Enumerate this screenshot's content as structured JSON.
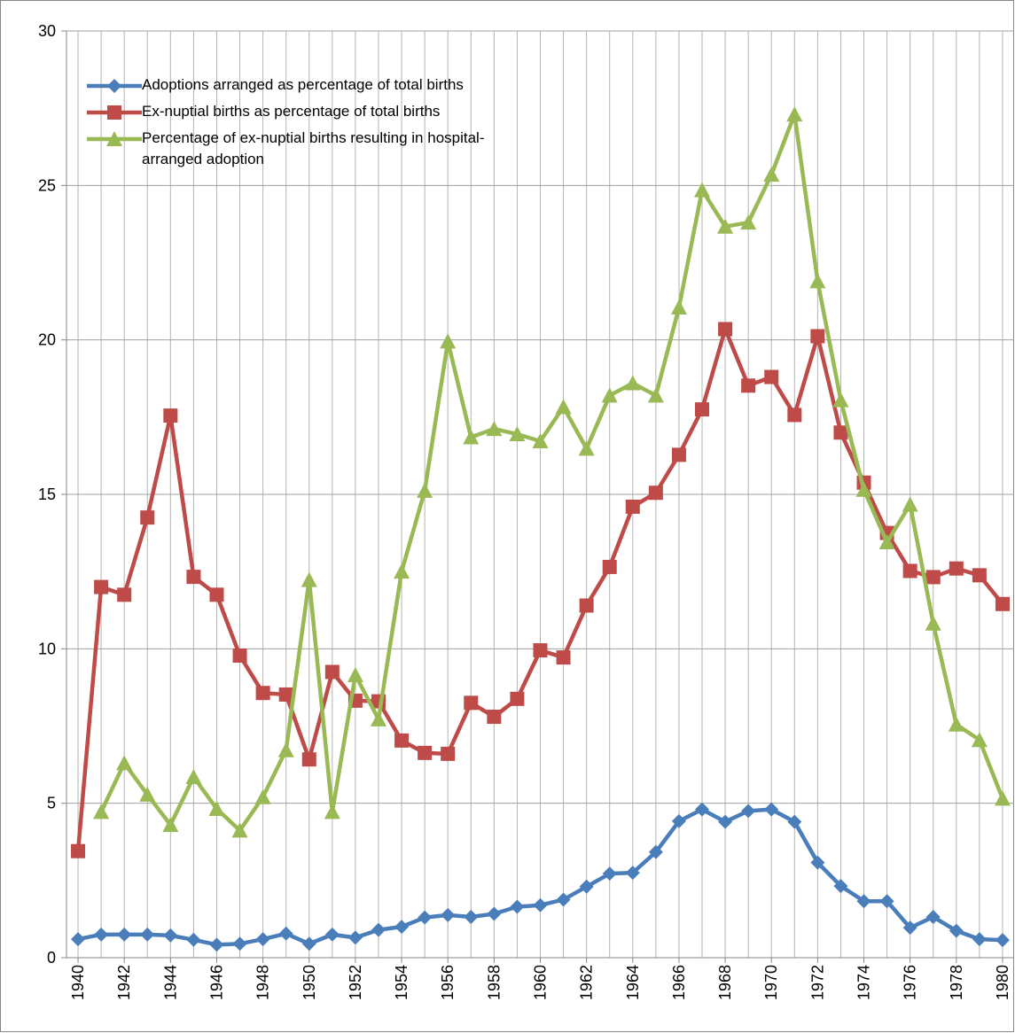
{
  "chart_data": {
    "type": "line",
    "x": [
      1940,
      1941,
      1942,
      1943,
      1944,
      1945,
      1946,
      1947,
      1948,
      1949,
      1950,
      1951,
      1952,
      1953,
      1954,
      1955,
      1956,
      1957,
      1958,
      1959,
      1960,
      1961,
      1962,
      1963,
      1964,
      1965,
      1966,
      1967,
      1968,
      1969,
      1970,
      1971,
      1972,
      1973,
      1974,
      1975,
      1976,
      1977,
      1978,
      1979,
      1980
    ],
    "xlim": [
      1939.5,
      1980.5
    ],
    "xticks": [
      1940,
      1942,
      1944,
      1946,
      1948,
      1950,
      1952,
      1954,
      1956,
      1958,
      1960,
      1962,
      1964,
      1966,
      1968,
      1970,
      1972,
      1974,
      1976,
      1978,
      1980
    ],
    "ylim": [
      0,
      30
    ],
    "yticks": [
      0,
      5,
      10,
      15,
      20,
      25,
      30
    ],
    "grid": true,
    "series": [
      {
        "name": "Adoptions arranged as percentage of total births",
        "color": "#4a7ebb",
        "marker": "diamond",
        "values": [
          0.6,
          0.75,
          0.75,
          0.75,
          0.72,
          0.58,
          0.42,
          0.45,
          0.6,
          0.78,
          0.45,
          0.75,
          0.65,
          0.9,
          1.0,
          1.3,
          1.38,
          1.32,
          1.42,
          1.65,
          1.7,
          1.88,
          2.3,
          2.72,
          2.75,
          3.42,
          4.42,
          4.8,
          4.4,
          4.75,
          4.8,
          4.4,
          3.08,
          2.32,
          1.83,
          1.83,
          0.97,
          1.32,
          0.87,
          0.6,
          0.57
        ]
      },
      {
        "name": "Ex-nuptial births as percentage of total births",
        "color": "#be4b48",
        "marker": "square",
        "values": [
          3.45,
          12.0,
          11.75,
          14.25,
          17.55,
          12.33,
          11.75,
          9.78,
          8.57,
          8.52,
          6.42,
          9.25,
          8.32,
          8.3,
          7.03,
          6.63,
          6.6,
          8.25,
          7.8,
          8.38,
          9.95,
          9.72,
          11.4,
          12.65,
          14.6,
          15.05,
          16.28,
          17.75,
          20.35,
          18.52,
          18.8,
          17.57,
          20.12,
          17.0,
          15.38,
          13.75,
          12.52,
          12.32,
          12.6,
          12.38,
          11.45
        ]
      },
      {
        "name": "Percentage of ex-nuptial births resulting in hospital-arranged adoption",
        "color": "#98b954",
        "marker": "triangle",
        "values": [
          null,
          4.72,
          6.3,
          5.28,
          4.3,
          5.85,
          4.82,
          4.12,
          5.2,
          6.72,
          12.23,
          4.72,
          9.15,
          7.72,
          12.5,
          15.12,
          19.95,
          16.85,
          17.12,
          16.95,
          16.72,
          17.83,
          16.48,
          18.2,
          18.6,
          18.2,
          21.05,
          24.85,
          23.67,
          23.8,
          25.35,
          27.3,
          21.9,
          18.05,
          15.15,
          13.45,
          14.67,
          10.82,
          7.55,
          7.05,
          5.15
        ]
      }
    ]
  }
}
